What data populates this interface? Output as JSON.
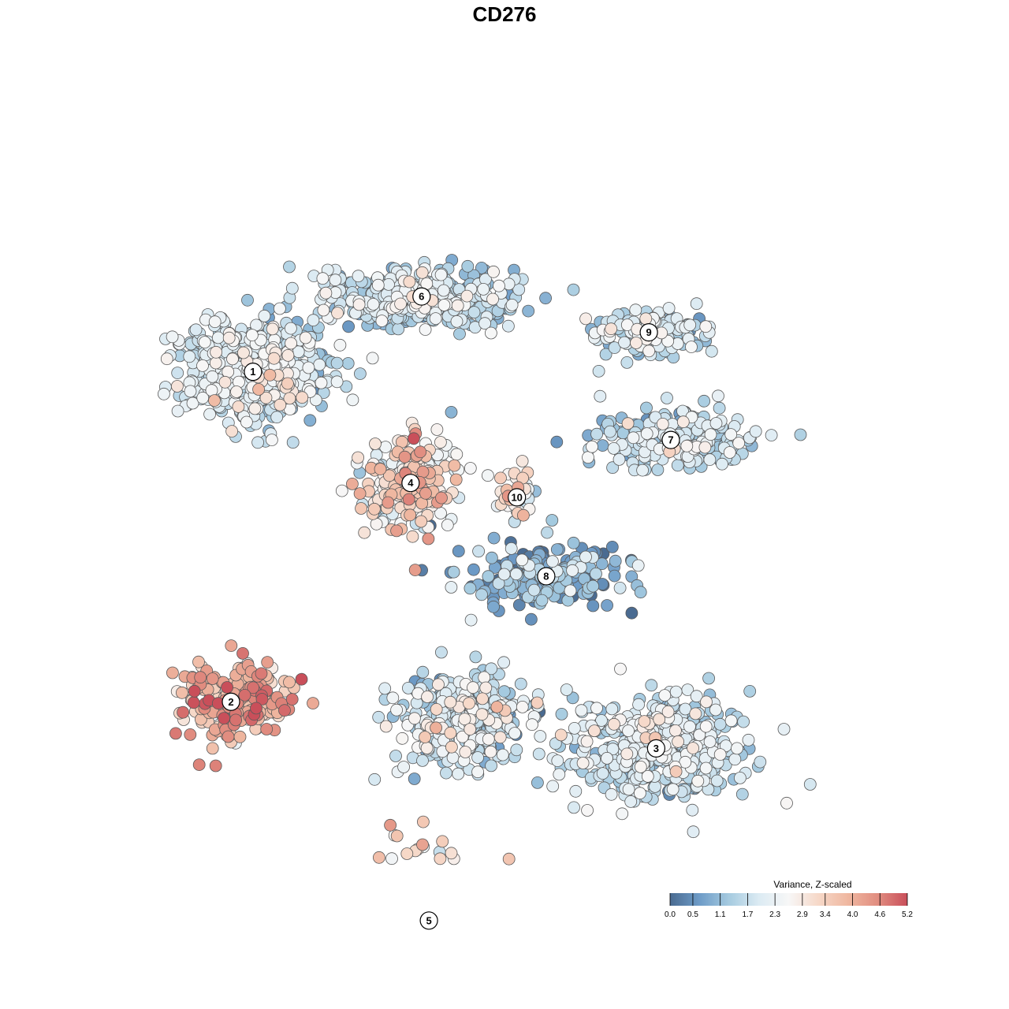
{
  "chart_data": {
    "type": "scatter",
    "title": "CD276",
    "xlabel": "",
    "ylabel": "",
    "grid": false,
    "legend": {
      "title": "Variance, Z-scaled",
      "position": "bottom-right",
      "ticks": [
        "0.0",
        "0.5",
        "1.1",
        "1.7",
        "2.3",
        "2.9",
        "3.4",
        "4.0",
        "4.6",
        "5.2"
      ],
      "range": [
        0.0,
        5.2
      ],
      "colors": [
        "#4a6b91",
        "#6e9cc8",
        "#a6cbe0",
        "#dcebf3",
        "#f7f7f7",
        "#f6d8c8",
        "#efb7a0",
        "#e18d80",
        "#c94f5a"
      ]
    },
    "xlim": [
      0,
      100
    ],
    "ylim": [
      0,
      100
    ],
    "clusters": [
      {
        "label": "1",
        "x": 13.0,
        "y": 68.5,
        "sx": 9.0,
        "sy": 6.5,
        "n": 560,
        "mean": 1.9,
        "sd": 0.55
      },
      {
        "label": "6",
        "x": 36.0,
        "y": 79.0,
        "sx": 12.0,
        "sy": 3.5,
        "n": 420,
        "mean": 1.7,
        "sd": 0.55
      },
      {
        "label": "9",
        "x": 67.0,
        "y": 74.0,
        "sx": 7.0,
        "sy": 3.0,
        "n": 150,
        "mean": 1.7,
        "sd": 0.6
      },
      {
        "label": "7",
        "x": 70.0,
        "y": 59.0,
        "sx": 10.0,
        "sy": 4.0,
        "n": 230,
        "mean": 1.6,
        "sd": 0.6
      },
      {
        "label": "4",
        "x": 34.5,
        "y": 53.0,
        "sx": 6.0,
        "sy": 6.0,
        "n": 220,
        "mean": 3.0,
        "sd": 0.9
      },
      {
        "label": "10",
        "x": 49.0,
        "y": 51.0,
        "sx": 2.5,
        "sy": 3.0,
        "n": 45,
        "mean": 2.5,
        "sd": 0.9
      },
      {
        "label": "8",
        "x": 53.0,
        "y": 40.0,
        "sx": 9.0,
        "sy": 4.0,
        "n": 220,
        "mean": 0.8,
        "sd": 0.6
      },
      {
        "label": "2",
        "x": 10.0,
        "y": 22.5,
        "sx": 8.0,
        "sy": 5.0,
        "n": 200,
        "mean": 3.8,
        "sd": 0.75
      },
      {
        "label": "3",
        "x": 68.0,
        "y": 16.0,
        "sx": 11.0,
        "sy": 6.5,
        "n": 500,
        "mean": 1.8,
        "sd": 0.55
      },
      {
        "label": "5",
        "x": 37.0,
        "y": -8.0,
        "sx": 9.5,
        "sy": 8.0,
        "n": 560,
        "mean": 3.3,
        "sd": 0.65
      },
      {
        "label": "",
        "x": 42.0,
        "y": 20.0,
        "sx": 8.0,
        "sy": 6.0,
        "n": 360,
        "mean": 1.8,
        "sd": 0.7
      }
    ]
  }
}
